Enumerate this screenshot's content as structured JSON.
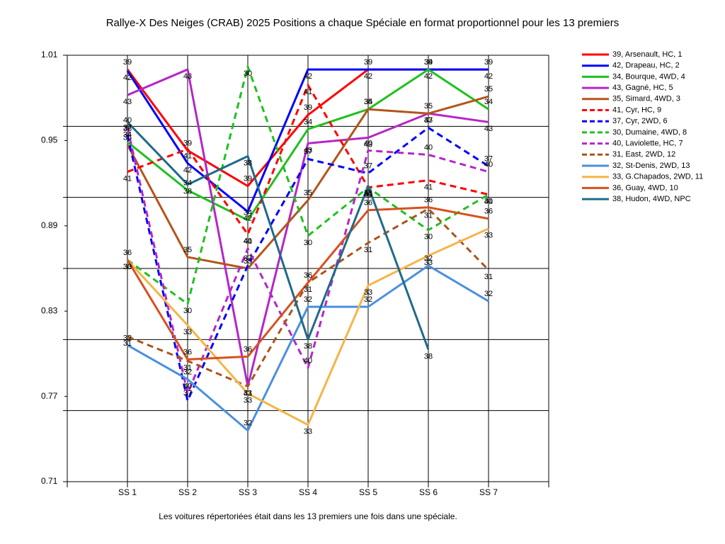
{
  "chart_data": {
    "type": "line",
    "title": "Rallye-X Des Neiges (CRAB) 2025  Positions a chaque Spéciale en format proportionnel pour les 13 premiers",
    "footnote": "Les voitures répertoriées était dans les 13 premiers une fois dans une spéciale.",
    "categories": [
      "SS 1",
      "SS 2",
      "SS 3",
      "SS 4",
      "SS 5",
      "SS 6",
      "SS 7"
    ],
    "ylim": [
      0.71,
      1.01
    ],
    "yticks": [
      1.01,
      0.95,
      0.89,
      0.83,
      0.77,
      0.71
    ],
    "ygrid": [
      1.01,
      0.96,
      0.91,
      0.86,
      0.81,
      0.76,
      0.71
    ],
    "legend": "right",
    "series": [
      {
        "name": "39, Arsenault, HC, 1",
        "point_label": "39",
        "color": "#ff0000",
        "dash": false,
        "values": [
          1.0,
          0.943,
          0.918,
          0.968,
          1.0,
          1.0,
          1.0
        ]
      },
      {
        "name": "42, Drapeau, HC, 2",
        "point_label": "42",
        "color": "#0000ff",
        "dash": false,
        "values": [
          0.999,
          0.934,
          0.9,
          1.0,
          1.0,
          1.0,
          1.0
        ]
      },
      {
        "name": "34, Bourque, 4WD, 4",
        "point_label": "34",
        "color": "#1fc01f",
        "dash": false,
        "values": [
          0.949,
          0.915,
          0.894,
          0.958,
          0.972,
          1.0,
          0.972
        ]
      },
      {
        "name": "43, Gagné, HC, 5",
        "point_label": "43",
        "color": "#b526c8",
        "dash": false,
        "values": [
          0.982,
          1.0,
          0.777,
          0.948,
          0.952,
          0.969,
          0.963
        ]
      },
      {
        "name": "35, Simard, 4WD, 3",
        "point_label": "35",
        "color": "#b5541b",
        "dash": false,
        "values": [
          0.947,
          0.868,
          0.86,
          0.908,
          0.972,
          0.969,
          0.981
        ]
      },
      {
        "name": "41, Cyr, HC, 9",
        "point_label": "41",
        "color": "#ff0000",
        "dash": true,
        "values": [
          0.928,
          0.944,
          0.884,
          0.989,
          0.917,
          0.922,
          0.912
        ]
      },
      {
        "name": "37, Cyr, 2WD, 6",
        "point_label": "37",
        "color": "#0000ff",
        "dash": true,
        "values": [
          0.954,
          0.767,
          0.862,
          0.937,
          0.927,
          0.959,
          0.932
        ]
      },
      {
        "name": "30, Dumaine, 4WD, 8",
        "point_label": "30",
        "color": "#1fc01f",
        "dash": true,
        "values": [
          0.866,
          0.835,
          1.002,
          0.883,
          0.917,
          0.887,
          0.912
        ]
      },
      {
        "name": "40, Laviolette, HC, 7",
        "point_label": "40",
        "color": "#b526c8",
        "dash": true,
        "values": [
          0.959,
          0.772,
          0.874,
          0.79,
          0.943,
          0.94,
          0.928
        ]
      },
      {
        "name": "31, East, 2WD, 12",
        "point_label": "31",
        "color": "#a8551e",
        "dash": true,
        "values": [
          0.812,
          0.795,
          0.777,
          0.85,
          0.878,
          0.902,
          0.859
        ]
      },
      {
        "name": "32, St-Denis, 2WD, 13",
        "point_label": "32",
        "color": "#4a8fe0",
        "dash": false,
        "values": [
          0.806,
          0.782,
          0.746,
          0.833,
          0.833,
          0.862,
          0.837
        ]
      },
      {
        "name": "33, G.Chapados, 2WD, 11",
        "point_label": "33",
        "color": "#f6b445",
        "dash": false,
        "values": [
          0.866,
          0.82,
          0.772,
          0.75,
          0.848,
          0.869,
          0.888
        ]
      },
      {
        "name": "36, Guay, 4WD, 10",
        "point_label": "36",
        "color": "#d8501e",
        "dash": false,
        "values": [
          0.866,
          0.796,
          0.798,
          0.85,
          0.901,
          0.903,
          0.895
        ]
      },
      {
        "name": "38, Hudon, 4WD,  NPC",
        "point_label": "38",
        "color": "#1f6a8a",
        "dash": false,
        "values": [
          0.963,
          0.919,
          0.939,
          0.81,
          0.918,
          0.803,
          null
        ]
      }
    ]
  }
}
